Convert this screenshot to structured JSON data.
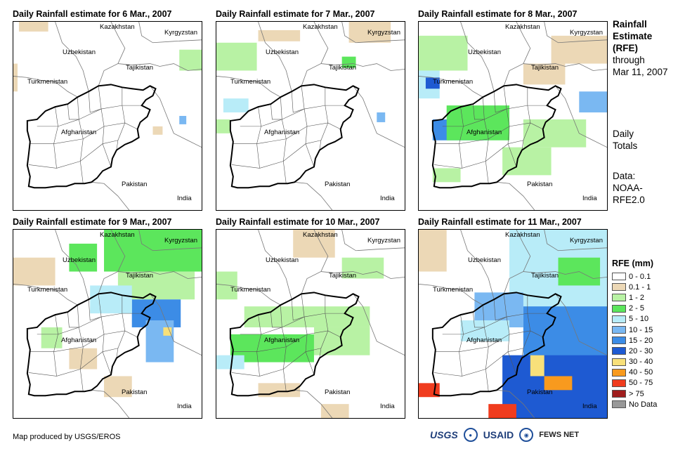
{
  "panels": [
    {
      "title": "Daily Rainfall estimate for 6 Mar., 2007"
    },
    {
      "title": "Daily Rainfall estimate for 7 Mar., 2007"
    },
    {
      "title": "Daily Rainfall estimate for 8 Mar., 2007"
    },
    {
      "title": "Daily Rainfall estimate for 9 Mar., 2007"
    },
    {
      "title": "Daily Rainfall estimate for 10 Mar., 2007"
    },
    {
      "title": "Daily Rainfall estimate for 11 Mar., 2007"
    }
  ],
  "countries": {
    "kazakhstan": "Kazakhstan",
    "kyrgyzstan": "Kyrgyzstan",
    "uzbekistan": "Uzbekistan",
    "tajikistan": "Tajikistan",
    "turkmenistan": "Turkmenistan",
    "afghanistan": "Afghanistan",
    "pakistan": "Pakistan",
    "india": "India"
  },
  "side_info": {
    "title_line1": "Rainfall",
    "title_line2": "Estimate",
    "title_line3": "(RFE)",
    "through": "through",
    "date": "Mar 11, 2007",
    "daily1": "Daily",
    "daily2": "Totals",
    "data1": "Data:",
    "data2": "NOAA-",
    "data3": "RFE2.0"
  },
  "legend": {
    "title": "RFE (mm)",
    "items": [
      {
        "label": "0 - 0.1",
        "color": "#ffffff"
      },
      {
        "label": "0.1 - 1",
        "color": "#ecd8b6"
      },
      {
        "label": "1 - 2",
        "color": "#b8f2a4"
      },
      {
        "label": "2 - 5",
        "color": "#5ce65c"
      },
      {
        "label": "5 - 10",
        "color": "#b8ecf8"
      },
      {
        "label": "10 - 15",
        "color": "#7ab8f2"
      },
      {
        "label": "15 - 20",
        "color": "#3c8ce6"
      },
      {
        "label": "20 - 30",
        "color": "#1e5ad2"
      },
      {
        "label": "30 - 40",
        "color": "#f8e07a"
      },
      {
        "label": "40 - 50",
        "color": "#f89a1e"
      },
      {
        "label": "50 - 75",
        "color": "#f03c1e"
      },
      {
        "label": "> 75",
        "color": "#a01e1e"
      },
      {
        "label": "No Data",
        "color": "#999999"
      }
    ]
  },
  "credit": "Map produced by USGS/EROS",
  "logos": {
    "usgs": "USGS",
    "noaa": "NOAA",
    "usaid": "USAID",
    "fews": "FEWS NET"
  }
}
